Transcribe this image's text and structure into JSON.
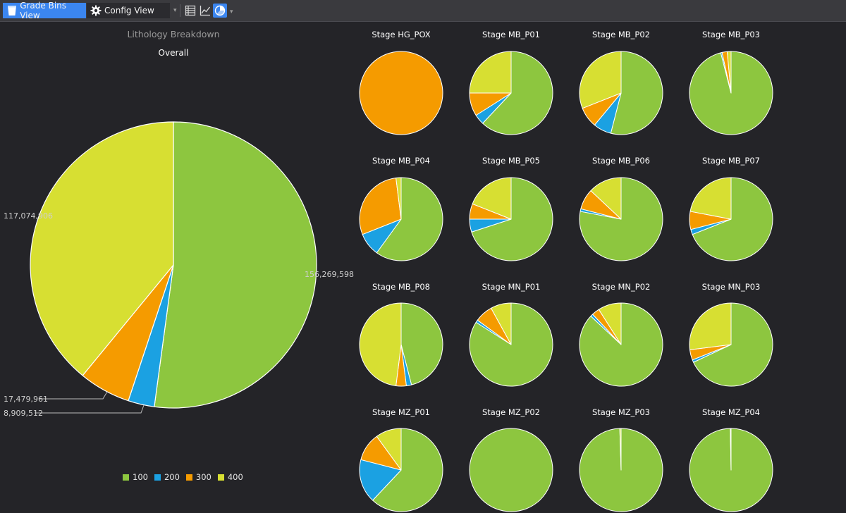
{
  "toolbar": {
    "tabs": [
      {
        "label": "Grade Bins View",
        "icon": "grade-bins-icon",
        "active": true
      },
      {
        "label": "Config View",
        "icon": "gear-icon",
        "active": false
      }
    ],
    "tools": [
      {
        "name": "table-view-icon",
        "selected": false
      },
      {
        "name": "line-chart-icon",
        "selected": false
      },
      {
        "name": "pie-chart-icon",
        "selected": true
      }
    ]
  },
  "colors": {
    "100": "#8dc63f",
    "200": "#1ba1e2",
    "300": "#f59b00",
    "400": "#d7df32"
  },
  "chart_data": [
    {
      "type": "pie",
      "title": "Lithology Breakdown",
      "subtitle": "Overall",
      "legend": [
        "100",
        "200",
        "300",
        "400"
      ],
      "legend_position": "bottom",
      "slices": [
        {
          "category": "100",
          "value": 156269598,
          "label": "156,269,598"
        },
        {
          "category": "200",
          "value": 8909512,
          "label": "8,909,512"
        },
        {
          "category": "300",
          "value": 17479961,
          "label": "17,479,961"
        },
        {
          "category": "400",
          "value": 117074906,
          "label": "117,074,906"
        }
      ]
    },
    {
      "type": "pie",
      "title": "Stage HG_POX",
      "values": {
        "100": 0,
        "200": 0,
        "300": 1.0,
        "400": 0
      }
    },
    {
      "type": "pie",
      "title": "Stage MB_P01",
      "values": {
        "100": 0.62,
        "200": 0.04,
        "300": 0.09,
        "400": 0.25
      }
    },
    {
      "type": "pie",
      "title": "Stage MB_P02",
      "values": {
        "100": 0.54,
        "200": 0.07,
        "300": 0.08,
        "400": 0.31
      }
    },
    {
      "type": "pie",
      "title": "Stage MB_P03",
      "values": {
        "100": 0.96,
        "200": 0.005,
        "300": 0.02,
        "400": 0.015
      }
    },
    {
      "type": "pie",
      "title": "Stage MB_P04",
      "values": {
        "100": 0.6,
        "200": 0.09,
        "300": 0.29,
        "400": 0.02
      }
    },
    {
      "type": "pie",
      "title": "Stage MB_P05",
      "values": {
        "100": 0.7,
        "200": 0.05,
        "300": 0.06,
        "400": 0.19
      }
    },
    {
      "type": "pie",
      "title": "Stage MB_P06",
      "values": {
        "100": 0.78,
        "200": 0.01,
        "300": 0.08,
        "400": 0.13
      }
    },
    {
      "type": "pie",
      "title": "Stage MB_P07",
      "values": {
        "100": 0.69,
        "200": 0.02,
        "300": 0.07,
        "400": 0.22
      }
    },
    {
      "type": "pie",
      "title": "Stage MB_P08",
      "values": {
        "100": 0.46,
        "200": 0.02,
        "300": 0.04,
        "400": 0.48
      }
    },
    {
      "type": "pie",
      "title": "Stage MN_P01",
      "values": {
        "100": 0.84,
        "200": 0.01,
        "300": 0.07,
        "400": 0.08
      }
    },
    {
      "type": "pie",
      "title": "Stage MN_P02",
      "values": {
        "100": 0.87,
        "200": 0.01,
        "300": 0.03,
        "400": 0.09
      }
    },
    {
      "type": "pie",
      "title": "Stage MN_P03",
      "values": {
        "100": 0.68,
        "200": 0.01,
        "300": 0.04,
        "400": 0.27
      }
    },
    {
      "type": "pie",
      "title": "Stage MZ_P01",
      "values": {
        "100": 0.62,
        "200": 0.17,
        "300": 0.11,
        "400": 0.1
      }
    },
    {
      "type": "pie",
      "title": "Stage MZ_P02",
      "values": {
        "100": 1.0,
        "200": 0,
        "300": 0,
        "400": 0
      }
    },
    {
      "type": "pie",
      "title": "Stage MZ_P03",
      "values": {
        "100": 0.995,
        "200": 0,
        "300": 0,
        "400": 0.005
      }
    },
    {
      "type": "pie",
      "title": "Stage MZ_P04",
      "values": {
        "100": 0.997,
        "200": 0,
        "300": 0,
        "400": 0.003
      }
    }
  ]
}
